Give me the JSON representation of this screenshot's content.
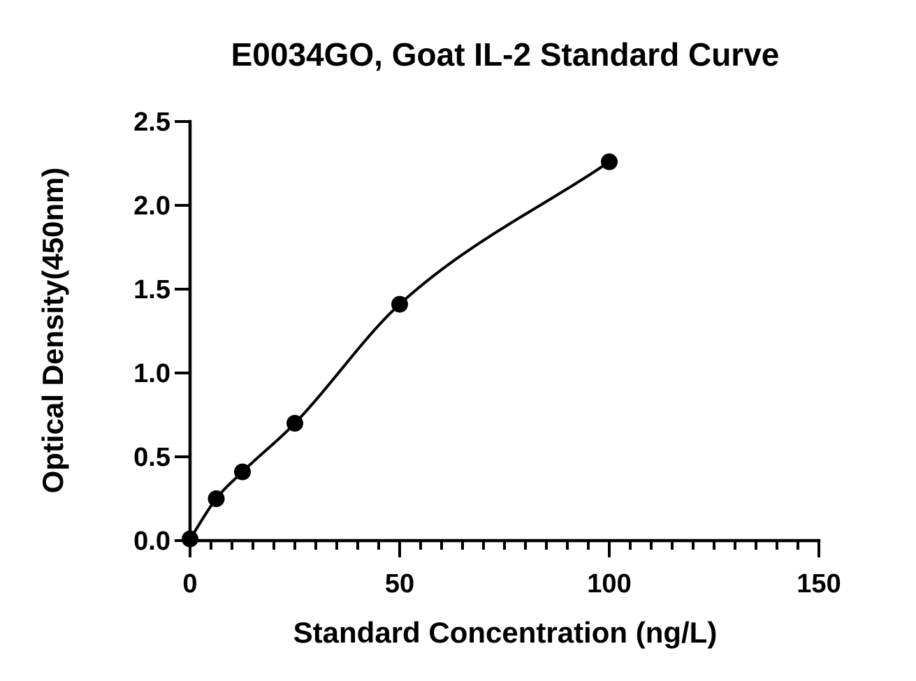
{
  "chart_data": {
    "type": "scatter",
    "title": "E0034GO, Goat IL-2 Standard Curve",
    "xlabel": "Standard Concentration (ng/L)",
    "ylabel": "Optical Density(450nm)",
    "xlim": [
      0,
      150
    ],
    "ylim": [
      0,
      2.5
    ],
    "x_ticks": [
      0,
      50,
      100,
      150
    ],
    "x_tick_labels": [
      "0",
      "50",
      "100",
      "150"
    ],
    "x_minor_tick_step": 5,
    "y_ticks": [
      0,
      0.5,
      1.0,
      1.5,
      2.0,
      2.5
    ],
    "y_tick_labels": [
      "0.0",
      "0.5",
      "1.0",
      "1.5",
      "2.0",
      "2.5"
    ],
    "grid": false,
    "legend": "none",
    "series": [
      {
        "x": [
          0,
          6.25,
          12.5,
          25,
          50,
          100
        ],
        "y": [
          0.01,
          0.25,
          0.41,
          0.7,
          1.41,
          2.26
        ],
        "marker": "circle",
        "fit_curve": true
      }
    ],
    "color": "#000000"
  }
}
